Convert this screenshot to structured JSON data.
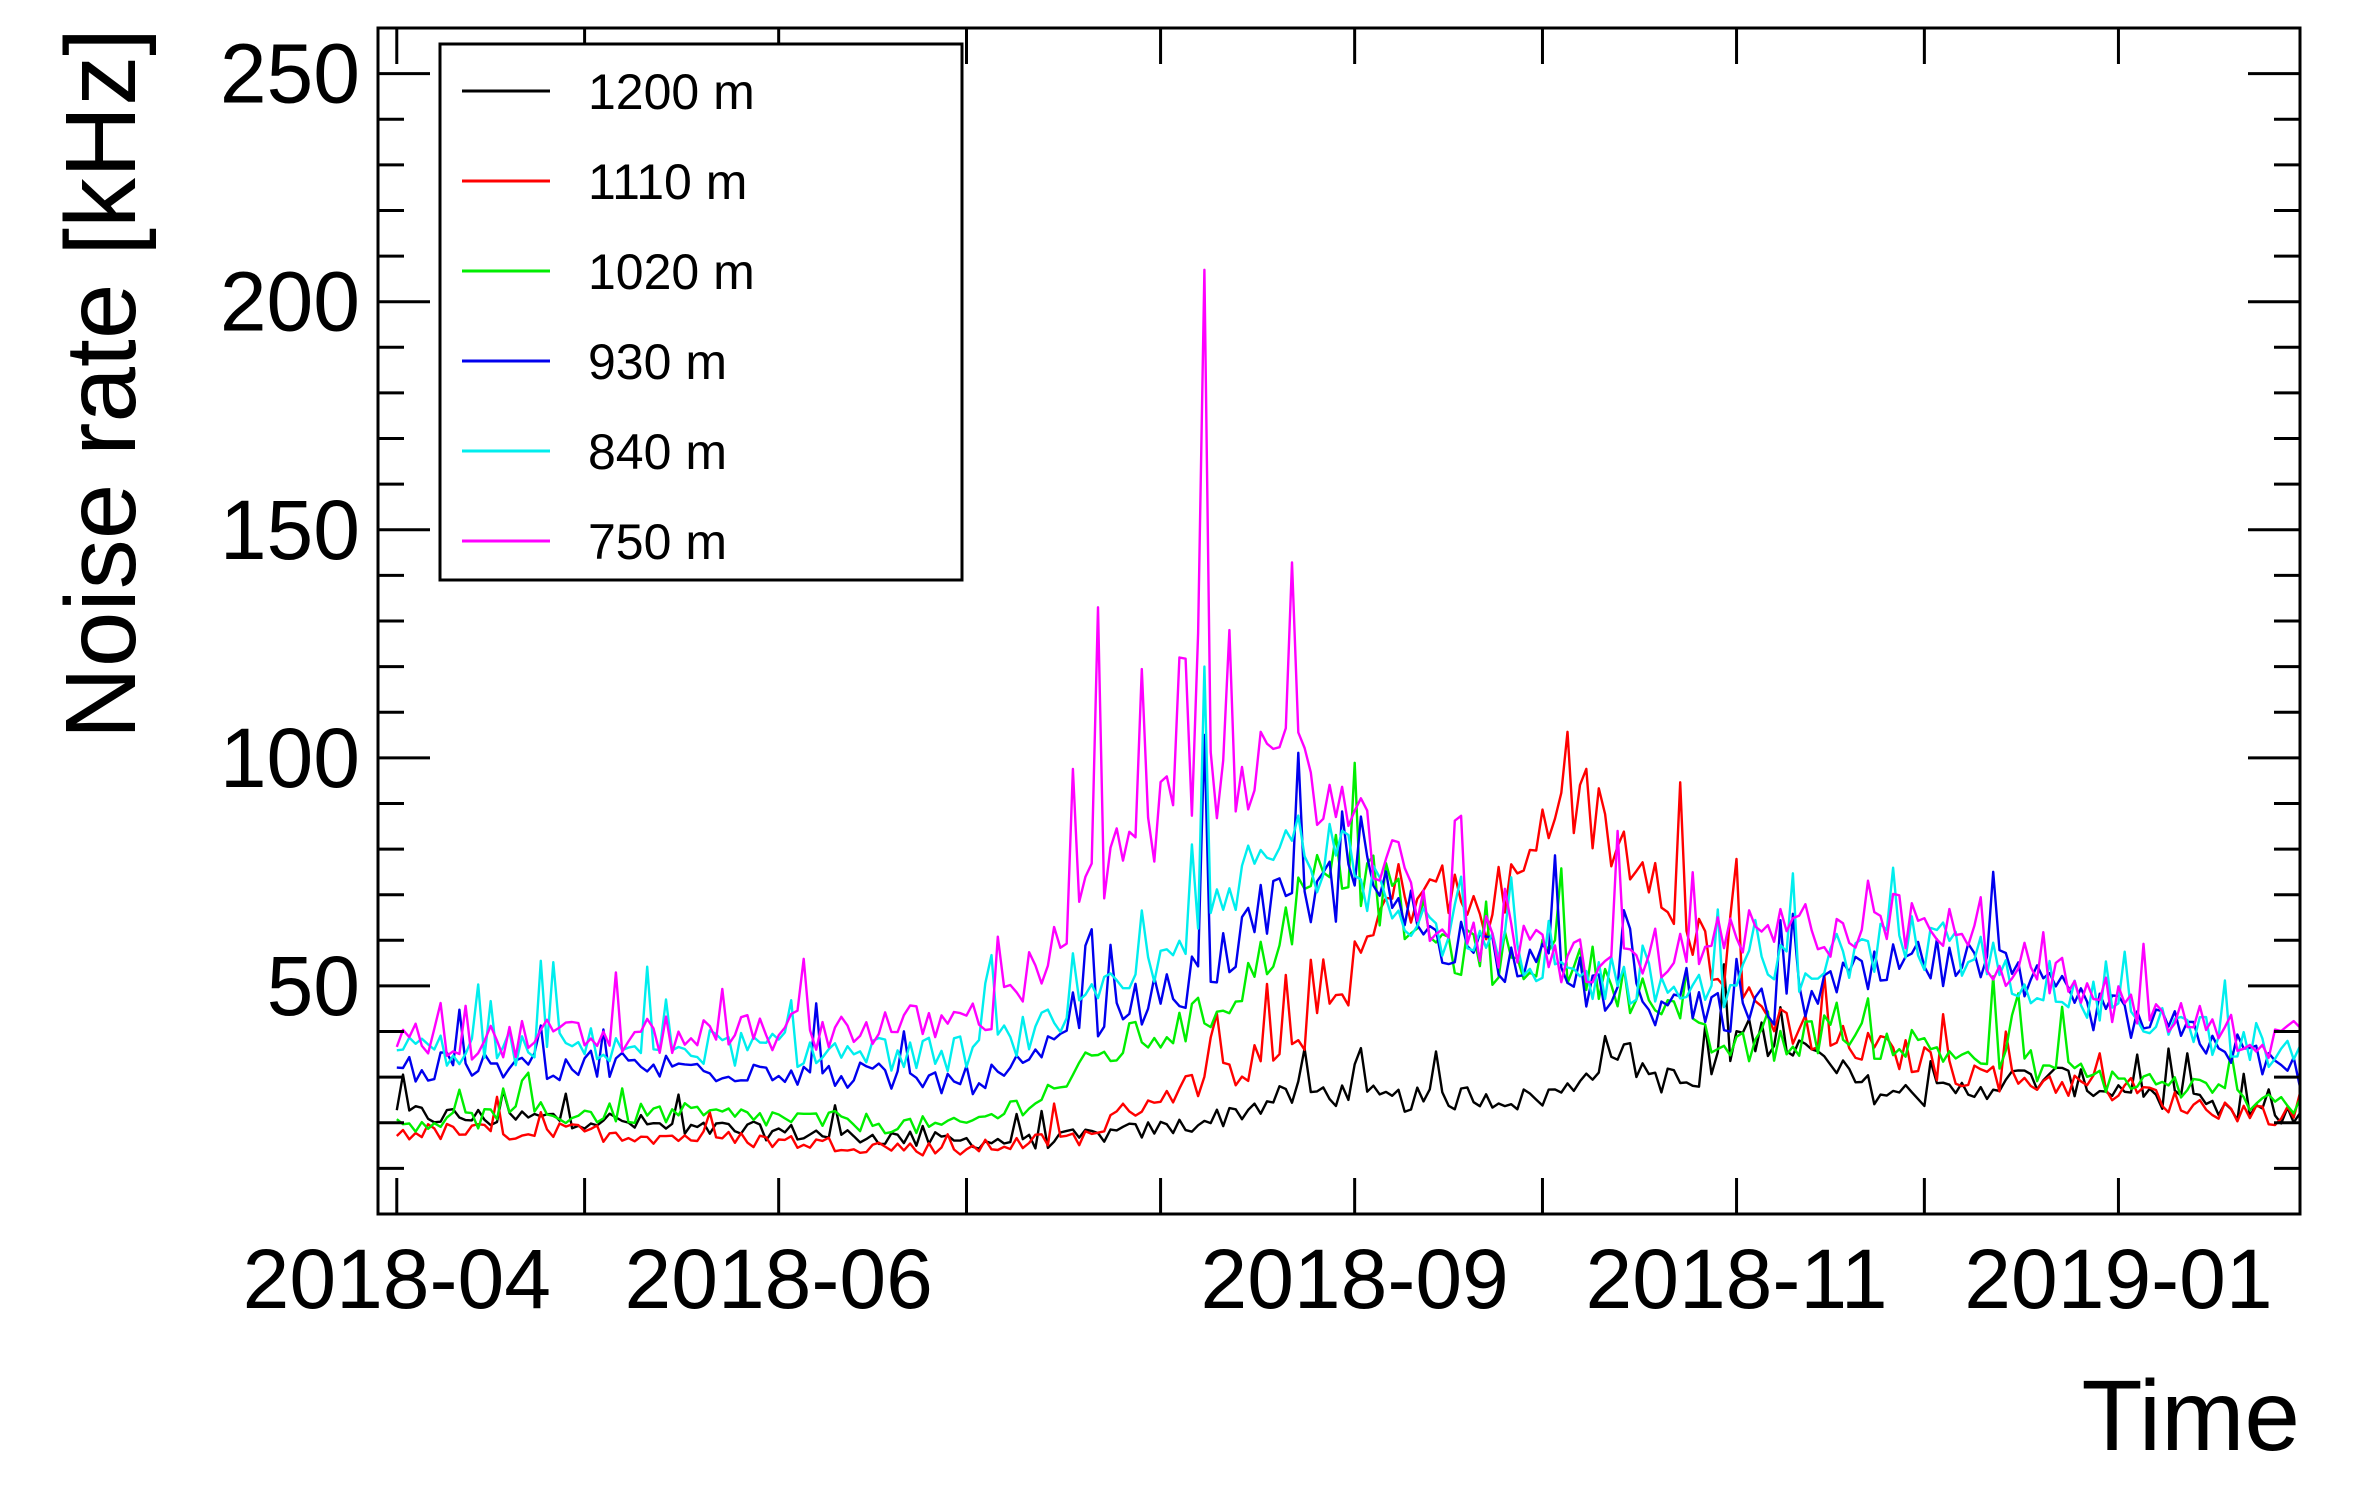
{
  "chart_data": {
    "type": "line",
    "title": "",
    "xlabel": "Time",
    "ylabel": "Noise rate [kHz]",
    "xlim": [
      "2018-03-29",
      "2019-01-30"
    ],
    "ylim": [
      0,
      260
    ],
    "xticks": [
      "2018-04",
      "2018-06",
      "2018-09",
      "2018-11",
      "2019-01"
    ],
    "yticks": [
      50,
      100,
      150,
      200,
      250
    ],
    "grid": false,
    "legend": "top-left",
    "x": [
      "2018-04-01",
      "2018-04-15",
      "2018-05-01",
      "2018-05-15",
      "2018-06-01",
      "2018-06-15",
      "2018-06-29",
      "2018-07-06",
      "2018-07-13",
      "2018-07-20",
      "2018-07-27",
      "2018-08-03",
      "2018-08-10",
      "2018-08-17",
      "2018-08-24",
      "2018-08-31",
      "2018-09-07",
      "2018-09-14",
      "2018-09-21",
      "2018-09-28",
      "2018-10-05",
      "2018-10-12",
      "2018-10-19",
      "2018-10-26",
      "2018-11-02",
      "2018-11-09",
      "2018-11-16",
      "2018-11-23",
      "2018-11-30",
      "2018-12-07",
      "2018-12-14",
      "2018-12-21",
      "2018-12-28",
      "2019-01-04",
      "2019-01-11",
      "2019-01-18",
      "2019-01-25",
      "2019-01-30"
    ],
    "series": [
      {
        "name": "1200 m",
        "color": "#000000",
        "values": [
          22,
          21,
          21,
          19,
          18,
          17,
          16,
          16,
          16,
          17,
          18,
          19,
          21,
          24,
          27,
          26,
          25,
          25,
          26,
          25,
          27,
          37,
          30,
          28,
          40,
          38,
          32,
          27,
          26,
          27,
          29,
          30,
          28,
          27,
          25,
          22,
          22,
          21
        ]
      },
      {
        "name": "1110 m",
        "color": "#ff0000",
        "values": [
          18,
          18,
          18,
          17,
          16,
          15,
          14,
          15,
          16,
          17,
          23,
          27,
          30,
          33,
          40,
          50,
          70,
          72,
          65,
          75,
          95,
          82,
          78,
          60,
          48,
          42,
          38,
          36,
          34,
          31,
          30,
          29,
          28,
          27,
          24,
          23,
          22,
          21
        ]
      },
      {
        "name": "1020 m",
        "color": "#00ee00",
        "values": [
          20,
          21,
          22,
          22,
          21,
          20,
          19,
          22,
          26,
          32,
          38,
          40,
          45,
          55,
          70,
          78,
          68,
          60,
          55,
          57,
          55,
          52,
          46,
          38,
          36,
          38,
          40,
          38,
          37,
          35,
          34,
          32,
          30,
          29,
          28,
          26,
          25,
          24
        ]
      },
      {
        "name": "930 m",
        "color": "#0000ee",
        "values": [
          32,
          32,
          33,
          32,
          32,
          30,
          29,
          30,
          34,
          42,
          46,
          48,
          55,
          65,
          70,
          72,
          68,
          62,
          58,
          55,
          52,
          48,
          46,
          44,
          44,
          46,
          50,
          52,
          55,
          54,
          52,
          48,
          45,
          42,
          40,
          37,
          33,
          31
        ]
      },
      {
        "name": "840 m",
        "color": "#00eeee",
        "values": [
          36,
          36,
          37,
          37,
          36,
          35,
          35,
          38,
          40,
          45,
          50,
          55,
          65,
          78,
          80,
          76,
          70,
          64,
          58,
          54,
          52,
          52,
          50,
          49,
          52,
          54,
          56,
          58,
          60,
          57,
          54,
          50,
          46,
          44,
          41,
          38,
          35,
          36
        ]
      },
      {
        "name": "750 m",
        "color": "#ff00ff",
        "values": [
          38,
          38,
          39,
          39,
          40,
          41,
          42,
          45,
          55,
          70,
          80,
          88,
          95,
          92,
          100,
          85,
          75,
          65,
          60,
          58,
          56,
          55,
          57,
          58,
          60,
          62,
          63,
          64,
          63,
          60,
          56,
          52,
          48,
          45,
          43,
          40,
          38,
          40
        ]
      }
    ],
    "spikes": [
      {
        "date": "2018-07-22",
        "series": "750 m",
        "value": 133
      },
      {
        "date": "2018-08-04",
        "series": "750 m",
        "value": 122
      },
      {
        "date": "2018-08-08",
        "series": "750 m",
        "value": 207
      },
      {
        "date": "2018-08-12",
        "series": "750 m",
        "value": 128
      },
      {
        "date": "2018-08-08",
        "series": "840 m",
        "value": 120
      },
      {
        "date": "2018-08-08",
        "series": "930 m",
        "value": 105
      }
    ]
  }
}
